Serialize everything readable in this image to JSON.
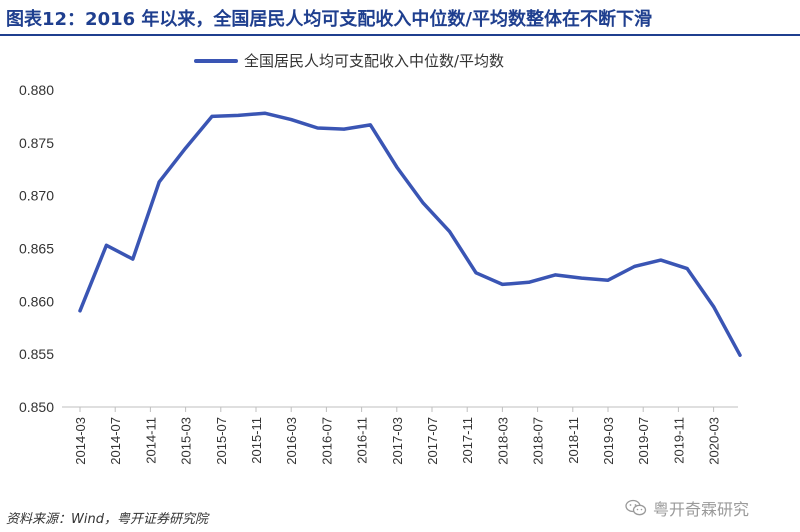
{
  "title": "图表12：2016 年以来，全国居民人均可支配收入中位数/平均数整体在不断下滑",
  "source": "资料来源：Wind，粤开证券研究院",
  "watermark": {
    "text": "粤开奇霖研究",
    "icon": "wechat-icon"
  },
  "colors": {
    "title": "#1f3f8f",
    "line": "#3a55b4",
    "axis": "#bfbfbf",
    "text": "#333333"
  },
  "chart_data": {
    "type": "line",
    "title": "",
    "xlabel": "",
    "ylabel": "",
    "ylim": [
      0.85,
      0.88
    ],
    "yticks": [
      "0.850",
      "0.855",
      "0.860",
      "0.865",
      "0.870",
      "0.875",
      "0.880"
    ],
    "xtick_labels": [
      "2014-03",
      "2014-07",
      "2014-11",
      "2015-03",
      "2015-07",
      "2015-11",
      "2016-03",
      "2016-07",
      "2016-11",
      "2017-03",
      "2017-07",
      "2017-11",
      "2018-03",
      "2018-07",
      "2018-11",
      "2019-03",
      "2019-07",
      "2019-11",
      "2020-03"
    ],
    "legend": {
      "position": "top",
      "label": "全国居民人均可支配收入中位数/平均数"
    },
    "grid": false,
    "series": [
      {
        "name": "全国居民人均可支配收入中位数/平均数",
        "x": [
          "2014-03",
          "2014-06",
          "2014-09",
          "2014-12",
          "2015-03",
          "2015-06",
          "2015-09",
          "2015-12",
          "2016-03",
          "2016-06",
          "2016-09",
          "2016-12",
          "2017-03",
          "2017-06",
          "2017-09",
          "2017-12",
          "2018-03",
          "2018-06",
          "2018-09",
          "2018-12",
          "2019-03",
          "2019-06",
          "2019-09",
          "2019-12",
          "2020-03",
          "2020-06"
        ],
        "values": [
          0.8591,
          0.8653,
          0.864,
          0.8713,
          0.8745,
          0.8775,
          0.8776,
          0.8778,
          0.8772,
          0.8764,
          0.8763,
          0.8767,
          0.8727,
          0.8693,
          0.8666,
          0.8627,
          0.8616,
          0.8618,
          0.8625,
          0.8622,
          0.862,
          0.8633,
          0.8639,
          0.8631,
          0.8595,
          0.8549
        ]
      }
    ]
  }
}
